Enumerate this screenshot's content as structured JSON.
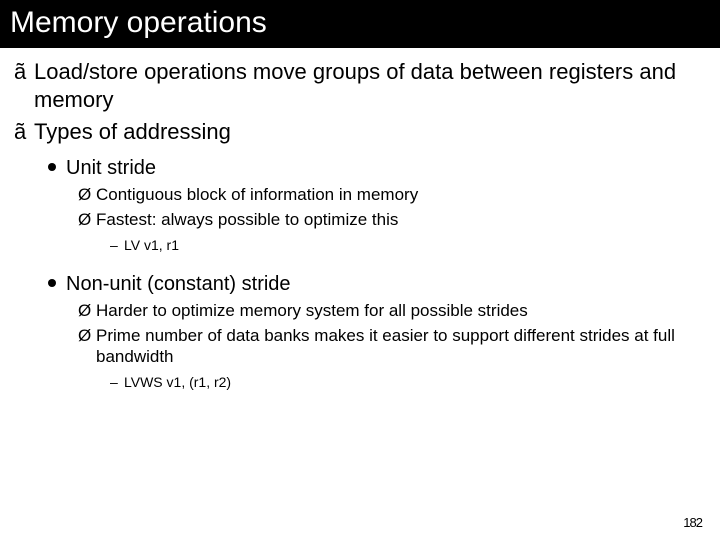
{
  "title": "Memory operations",
  "bullets": {
    "lvl1_glyph": "ã",
    "lvl3_glyph": "Ø",
    "lvl4_glyph": "–"
  },
  "items": {
    "a": "Load/store operations move groups of data between registers and memory",
    "b": "Types of addressing",
    "b1": "Unit stride",
    "b1a": "Contiguous block of information in memory",
    "b1b": "Fastest: always possible to optimize this",
    "b1b1": "LV v1, r1",
    "b2": "Non-unit (constant) stride",
    "b2a": "Harder to optimize memory system for all possible strides",
    "b2b": "Prime number of data banks makes it easier to support different strides at full bandwidth",
    "b2b1": "LVWS v1, (r1, r2)"
  },
  "page_number": "182"
}
